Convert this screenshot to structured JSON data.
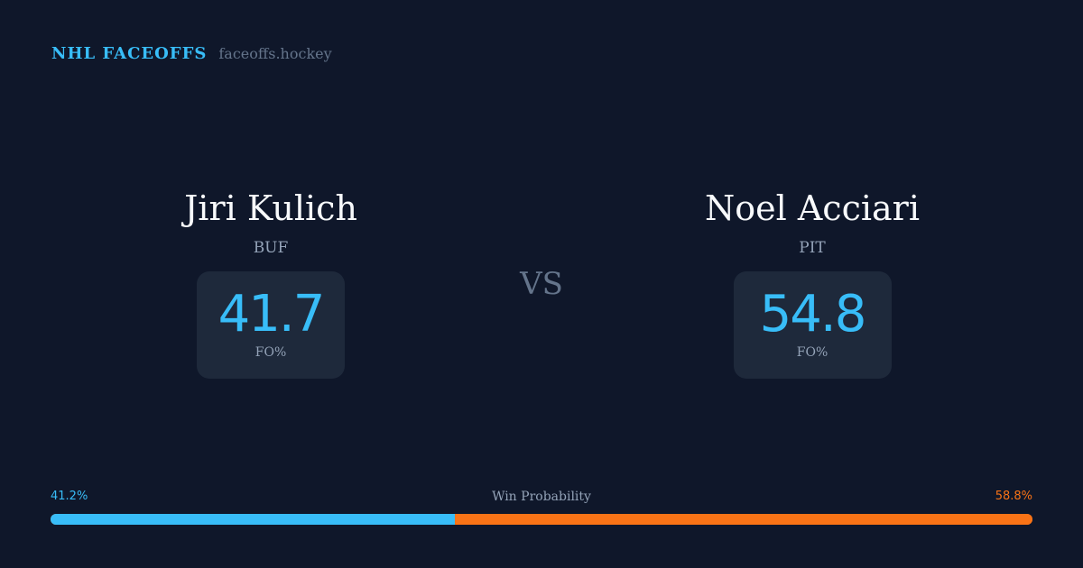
{
  "brand": {
    "title": "NHL FACEOFFS",
    "domain": "faceoffs.hockey"
  },
  "left": {
    "name": "Jiri Kulich",
    "team": "BUF",
    "value": "41.7",
    "label": "FO%"
  },
  "right": {
    "name": "Noel Acciari",
    "team": "PIT",
    "value": "54.8",
    "label": "FO%"
  },
  "vs": "VS",
  "win_probability": {
    "label": "Win Probability",
    "left": "41.2%",
    "right": "58.8%",
    "left_fraction": 0.412
  },
  "colors": {
    "background": "#0f172a",
    "card": "#1e293b",
    "accent": "#38bdf8",
    "opponent": "#f97316",
    "muted": "#94a3b8"
  }
}
